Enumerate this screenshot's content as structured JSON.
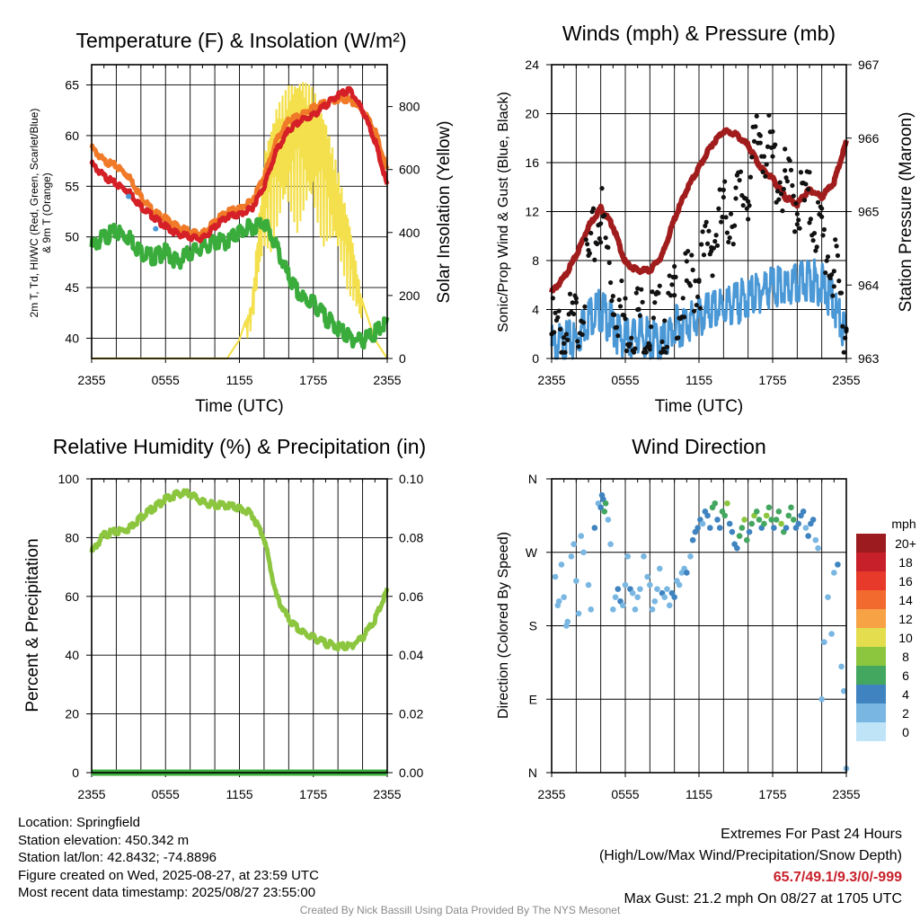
{
  "colors": {
    "temp": "#d42026",
    "dew": "#3aac3c",
    "wc": "#f07a27",
    "t9m": "#f07a27",
    "solar": "#f4e04d",
    "wind": "#4a98d6",
    "gust": "#111111",
    "pressure": "#a11d1d",
    "rh": "#8cc63f",
    "precip": "#3aac3c",
    "extremes": "#c8202a"
  },
  "chart_data": [
    {
      "type": "line",
      "title": "Temperature (F) & Insolation (W/m²)",
      "xlabel": "Time (UTC)",
      "ylabel": "2m T, Td, HI/WC (Red, Green, Scarlet/Blue) & 9m T (Orange)",
      "ylabel2": "Solar Insolation (Yellow)",
      "x_ticks": [
        "2355",
        "0555",
        "1155",
        "1755",
        "2355"
      ],
      "ylim": [
        38,
        67
      ],
      "y_ticks": [
        40,
        45,
        50,
        55,
        60,
        65
      ],
      "ylim2": [
        0,
        933
      ],
      "y2_ticks": [
        0,
        200,
        400,
        600,
        800
      ],
      "x": [
        0,
        1,
        2,
        3,
        4,
        5,
        6,
        7,
        8,
        9,
        10,
        11,
        12,
        13,
        14,
        15,
        16,
        17,
        18,
        19,
        20,
        21,
        22,
        23,
        24
      ],
      "series": [
        {
          "name": "2m T",
          "color": "temp",
          "values": [
            57.2,
            56.0,
            55.2,
            54.5,
            53.0,
            52.0,
            51.0,
            50.3,
            50.0,
            49.8,
            51.0,
            52.0,
            52.2,
            52.8,
            55.0,
            58.5,
            60.5,
            61.5,
            62.0,
            63.0,
            64.0,
            64.5,
            62.5,
            59.5,
            55.0
          ]
        },
        {
          "name": "9m T",
          "color": "t9m",
          "values": [
            58.8,
            57.5,
            57.0,
            56.0,
            54.0,
            52.5,
            51.8,
            51.0,
            50.5,
            50.3,
            51.5,
            52.5,
            52.8,
            53.5,
            56.0,
            59.5,
            61.5,
            62.0,
            62.8,
            63.2,
            63.6,
            63.5,
            62.5,
            60.5,
            56.5
          ]
        },
        {
          "name": "Td",
          "color": "dew",
          "values": [
            49.0,
            50.0,
            50.5,
            50.0,
            48.5,
            48.0,
            48.5,
            47.5,
            48.5,
            49.0,
            49.5,
            49.5,
            50.5,
            51.0,
            51.5,
            49.0,
            46.0,
            44.0,
            43.5,
            42.0,
            41.0,
            40.0,
            39.8,
            40.5,
            41.5
          ]
        },
        {
          "name": "WC",
          "color": "wind",
          "x": [
            3,
            5.2
          ],
          "values": [
            54.0,
            50.8
          ]
        },
        {
          "name": "Solar",
          "axis": "y2",
          "color": "solar",
          "values": [
            0,
            0,
            0,
            0,
            0,
            0,
            0,
            0,
            0,
            0,
            0,
            0,
            60,
            180,
            650,
            800,
            870,
            890,
            860,
            760,
            600,
            420,
            180,
            60,
            0
          ]
        }
      ]
    },
    {
      "type": "line",
      "title": "Winds (mph) & Pressure (mb)",
      "xlabel": "Time (UTC)",
      "ylabel": "Sonic/Prop Wind & Gust (Blue, Black)",
      "ylabel2": "Station Pressure (Maroon)",
      "x_ticks": [
        "2355",
        "0555",
        "1155",
        "1755",
        "2355"
      ],
      "ylim": [
        0,
        24
      ],
      "y_ticks": [
        0,
        4,
        8,
        12,
        16,
        20,
        24
      ],
      "ylim2": [
        963,
        967
      ],
      "y2_ticks": [
        963,
        964,
        965,
        966,
        967
      ],
      "x": [
        0,
        1,
        2,
        3,
        4,
        5,
        6,
        7,
        8,
        9,
        10,
        11,
        12,
        13,
        14,
        15,
        16,
        17,
        18,
        19,
        20,
        21,
        22,
        23,
        24
      ],
      "series": [
        {
          "name": "Wind",
          "color": "wind",
          "values": [
            1.0,
            1.2,
            1.5,
            3.5,
            4.0,
            2.5,
            1.5,
            2.0,
            1.5,
            1.2,
            2.5,
            3.0,
            3.2,
            3.8,
            4.2,
            4.5,
            5.0,
            5.5,
            6.0,
            5.5,
            6.0,
            6.5,
            6.0,
            4.5,
            1.5
          ]
        },
        {
          "name": "Gust",
          "color": "gust",
          "values": [
            2.0,
            1.8,
            2.8,
            7.5,
            12.0,
            5.5,
            3.0,
            3.5,
            2.8,
            3.0,
            4.5,
            5.5,
            7.0,
            9.5,
            11.5,
            12.5,
            14.0,
            18.5,
            16.0,
            14.0,
            13.0,
            12.5,
            10.0,
            7.0,
            2.5
          ]
        },
        {
          "name": "Pressure",
          "axis": "y2",
          "color": "pressure",
          "values": [
            963.9,
            964.1,
            964.4,
            964.8,
            965.05,
            964.8,
            964.3,
            964.2,
            964.2,
            964.4,
            964.9,
            965.3,
            965.6,
            965.9,
            966.1,
            966.05,
            965.9,
            965.6,
            965.45,
            965.2,
            965.1,
            965.3,
            965.2,
            965.4,
            965.95
          ]
        }
      ]
    },
    {
      "type": "line",
      "title": "Relative Humidity (%) & Precipitation (in)",
      "xlabel": "",
      "ylabel": "Percent & Precipitation",
      "x_ticks": [
        "2355",
        "0555",
        "1155",
        "1755",
        "2355"
      ],
      "ylim": [
        0,
        100
      ],
      "y_ticks": [
        0,
        20,
        40,
        60,
        80,
        100
      ],
      "ylim2": [
        0,
        0.1
      ],
      "y2_ticks": [
        "0.00",
        "0.02",
        "0.04",
        "0.06",
        "0.08",
        "0.10"
      ],
      "x": [
        0,
        1,
        2,
        3,
        4,
        5,
        6,
        7,
        8,
        9,
        10,
        11,
        12,
        13,
        14,
        15,
        16,
        17,
        18,
        19,
        20,
        21,
        22,
        23,
        24
      ],
      "series": [
        {
          "name": "RH",
          "color": "rh",
          "values": [
            75,
            81,
            82,
            83,
            87,
            90,
            93,
            95,
            95,
            92,
            91,
            91,
            90,
            88,
            80,
            60,
            52,
            48,
            46,
            44,
            43,
            43,
            46,
            52,
            62
          ]
        },
        {
          "name": "Precip",
          "axis": "y2",
          "color": "precip",
          "values": [
            0,
            0,
            0,
            0,
            0,
            0,
            0,
            0,
            0,
            0,
            0,
            0,
            0,
            0,
            0,
            0,
            0,
            0,
            0,
            0,
            0,
            0,
            0,
            0,
            0
          ]
        }
      ]
    },
    {
      "type": "scatter",
      "title": "Wind Direction",
      "ylabel": "Direction (Colored By Speed)",
      "x_ticks": [
        "2355",
        "0555",
        "1155",
        "1755",
        "2355"
      ],
      "y_ticks": [
        "N",
        "E",
        "S",
        "W",
        "N"
      ],
      "ylim": [
        0,
        360
      ],
      "legend": {
        "unit": "mph",
        "labels": [
          "20+",
          "18",
          "16",
          "14",
          "12",
          "10",
          "8",
          "6",
          "4",
          "2",
          "0"
        ],
        "colors": [
          "#9b1b1f",
          "#c8202a",
          "#e83a2a",
          "#f26a2d",
          "#f7a245",
          "#e4de4f",
          "#8cc63f",
          "#44a760",
          "#3f84c0",
          "#79b7e2",
          "#bfe4f7"
        ]
      },
      "points": [
        [
          0.3,
          240,
          2
        ],
        [
          0.5,
          205,
          1
        ],
        [
          0.6,
          210,
          2
        ],
        [
          0.8,
          255,
          1
        ],
        [
          1.0,
          215,
          1
        ],
        [
          1.2,
          180,
          1
        ],
        [
          1.3,
          185,
          2
        ],
        [
          1.6,
          265,
          1
        ],
        [
          1.8,
          280,
          2
        ],
        [
          2.0,
          235,
          1
        ],
        [
          2.2,
          195,
          1
        ],
        [
          2.4,
          290,
          2
        ],
        [
          2.6,
          270,
          1
        ],
        [
          3.0,
          230,
          2
        ],
        [
          3.2,
          200,
          2
        ],
        [
          3.5,
          300,
          3
        ],
        [
          3.8,
          330,
          2
        ],
        [
          4.0,
          325,
          3
        ],
        [
          4.1,
          340,
          4
        ],
        [
          4.2,
          335,
          4
        ],
        [
          4.3,
          320,
          6
        ],
        [
          4.4,
          330,
          5
        ],
        [
          4.6,
          310,
          2
        ],
        [
          4.8,
          280,
          1
        ],
        [
          5.0,
          200,
          2
        ],
        [
          5.2,
          215,
          1
        ],
        [
          5.4,
          225,
          3
        ],
        [
          5.6,
          210,
          3
        ],
        [
          5.8,
          205,
          2
        ],
        [
          6.0,
          230,
          2
        ],
        [
          6.2,
          265,
          1
        ],
        [
          6.4,
          225,
          3
        ],
        [
          6.6,
          220,
          2
        ],
        [
          6.8,
          200,
          1
        ],
        [
          7.0,
          215,
          2
        ],
        [
          7.2,
          225,
          1
        ],
        [
          7.5,
          265,
          1
        ],
        [
          7.8,
          240,
          2
        ],
        [
          8.0,
          230,
          2
        ],
        [
          8.2,
          200,
          1
        ],
        [
          8.4,
          210,
          2
        ],
        [
          8.6,
          225,
          1
        ],
        [
          8.8,
          250,
          2
        ],
        [
          9.0,
          220,
          3
        ],
        [
          9.2,
          215,
          2
        ],
        [
          9.4,
          225,
          1
        ],
        [
          9.6,
          205,
          2
        ],
        [
          9.8,
          220,
          3
        ],
        [
          10.0,
          215,
          3
        ],
        [
          10.2,
          235,
          2
        ],
        [
          10.4,
          230,
          1
        ],
        [
          10.6,
          245,
          1
        ],
        [
          10.8,
          250,
          2
        ],
        [
          11.0,
          245,
          3
        ],
        [
          11.3,
          265,
          2
        ],
        [
          11.5,
          285,
          3
        ],
        [
          11.7,
          295,
          3
        ],
        [
          11.9,
          300,
          4
        ],
        [
          12.1,
          310,
          3
        ],
        [
          12.3,
          305,
          2
        ],
        [
          12.5,
          320,
          3
        ],
        [
          12.7,
          315,
          4
        ],
        [
          12.9,
          300,
          3
        ],
        [
          13.1,
          325,
          5
        ],
        [
          13.3,
          330,
          6
        ],
        [
          13.5,
          310,
          4
        ],
        [
          13.7,
          300,
          3
        ],
        [
          13.9,
          320,
          5
        ],
        [
          14.1,
          315,
          6
        ],
        [
          14.3,
          330,
          7
        ],
        [
          14.5,
          305,
          4
        ],
        [
          14.7,
          295,
          3
        ],
        [
          14.9,
          280,
          4
        ],
        [
          15.1,
          275,
          3
        ],
        [
          15.3,
          290,
          5
        ],
        [
          15.5,
          300,
          6
        ],
        [
          15.7,
          310,
          7
        ],
        [
          15.9,
          285,
          5
        ],
        [
          16.1,
          295,
          4
        ],
        [
          16.3,
          305,
          6
        ],
        [
          16.5,
          315,
          7
        ],
        [
          16.7,
          320,
          6
        ],
        [
          16.9,
          310,
          5
        ],
        [
          17.1,
          300,
          4
        ],
        [
          17.3,
          305,
          6
        ],
        [
          17.5,
          315,
          7
        ],
        [
          17.7,
          325,
          6
        ],
        [
          17.9,
          310,
          5
        ],
        [
          18.1,
          300,
          4
        ],
        [
          18.3,
          310,
          6
        ],
        [
          18.5,
          320,
          5
        ],
        [
          18.7,
          305,
          7
        ],
        [
          18.9,
          295,
          6
        ],
        [
          19.1,
          300,
          4
        ],
        [
          19.3,
          315,
          5
        ],
        [
          19.5,
          325,
          6
        ],
        [
          19.7,
          310,
          5
        ],
        [
          19.9,
          300,
          4
        ],
        [
          20.1,
          305,
          3
        ],
        [
          20.3,
          315,
          4
        ],
        [
          20.5,
          320,
          3
        ],
        [
          20.7,
          300,
          2
        ],
        [
          20.9,
          290,
          3
        ],
        [
          21.1,
          305,
          4
        ],
        [
          21.3,
          310,
          3
        ],
        [
          21.5,
          285,
          2
        ],
        [
          21.7,
          275,
          1
        ],
        [
          22.0,
          90,
          2
        ],
        [
          22.2,
          160,
          1
        ],
        [
          22.5,
          215,
          2
        ],
        [
          22.8,
          170,
          1
        ],
        [
          23.0,
          245,
          2
        ],
        [
          23.3,
          255,
          3
        ],
        [
          23.6,
          130,
          1
        ],
        [
          23.8,
          100,
          1
        ],
        [
          24.0,
          5,
          2
        ]
      ]
    }
  ],
  "info": {
    "location": "Location: Springfield",
    "elevation": "Station elevation: 450.342 m",
    "latlon": "Station lat/lon: 42.8432; -74.8896",
    "created": "Figure created on Wed, 2025-08-27, at 23:59 UTC",
    "recent": "Most recent data timestamp: 2025/08/27 23:55:00"
  },
  "extremes": {
    "title": "Extremes For Past 24 Hours",
    "legend": "(High/Low/Max Wind/Precipitation/Snow Depth)",
    "values": "65.7/49.1/9.3/0/-999",
    "gust": "Max Gust: 21.2 mph On 08/27 at 1705 UTC"
  },
  "credit": "Created By Nick Bassill Using Data Provided By The NYS Mesonet"
}
